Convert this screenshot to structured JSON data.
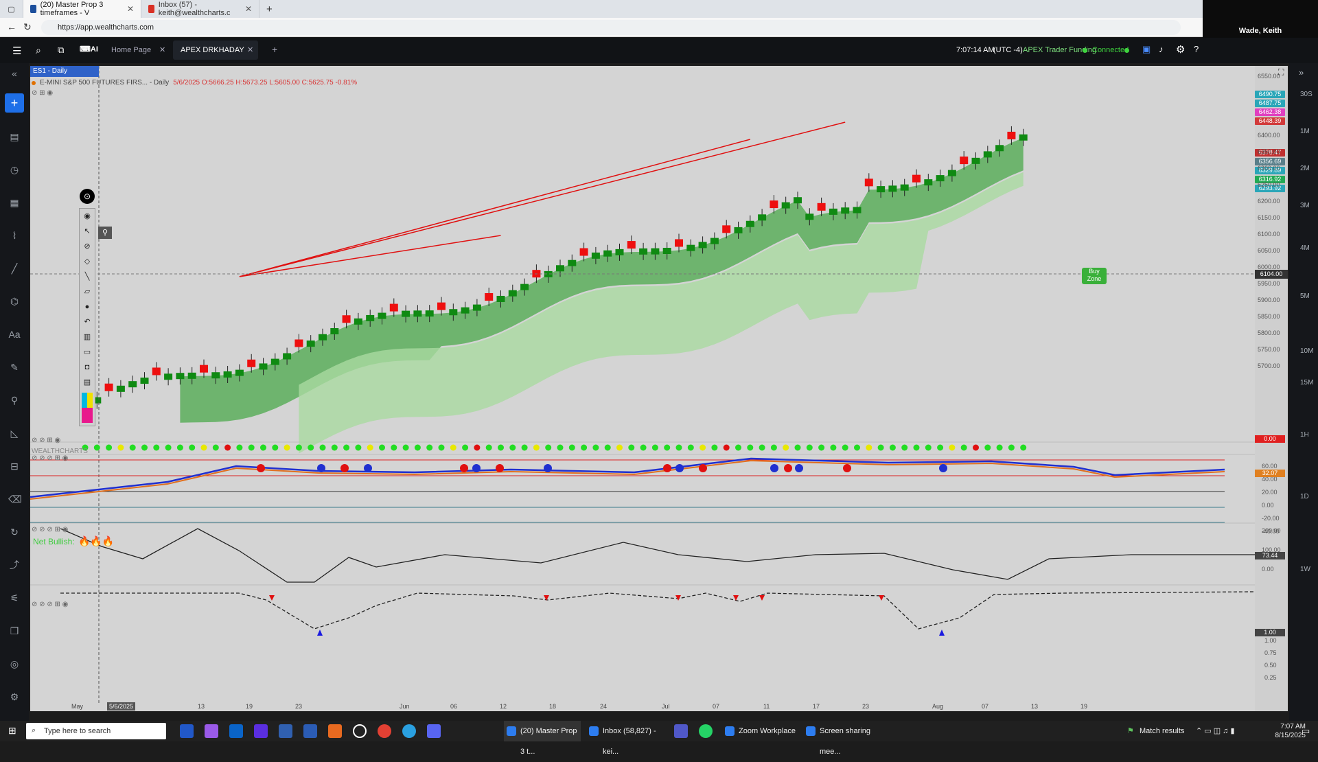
{
  "browser": {
    "tabs": [
      {
        "title": "(20) Master Prop 3 timeframes - V",
        "active": true
      },
      {
        "title": "Inbox (57) - keith@wealthcharts.c",
        "active": false
      }
    ],
    "new_tab": "+",
    "url": "https://app.wealthcharts.com",
    "user_name": "Wade, Keith"
  },
  "app": {
    "tabs": [
      "Home Page",
      "APEX DRKHADAY"
    ],
    "add_tab": "+",
    "time": "7:07:14 AM",
    "timezone": "(UTC -4)",
    "account": "APEX Trader Funding",
    "status": "Connected"
  },
  "chart": {
    "symbol_tab": "ES1 - Daily",
    "title": "E-MINI S&P 500 FUTURES FIRS... - Daily",
    "ohlc": "5/6/2025 O:5666.25 H:5673.25 L:5605.00 C:5625.75 -0.81%",
    "buy_zone": "Buy Zone",
    "net_bullish": "Net Bullish:",
    "crosshair_date": "5/6/2025",
    "crosshair_price": "6104.00",
    "watermark": "WEALTHCHARTS",
    "price_ticks": [
      "6550.00",
      "6400.00",
      "6350.00",
      "6300.00",
      "6250.00",
      "6200.00",
      "6150.00",
      "6100.00",
      "6050.00",
      "6000.00",
      "5950.00",
      "5900.00",
      "5850.00",
      "5800.00",
      "5750.00",
      "5700.00"
    ],
    "price_tags": [
      {
        "v": "6490.75",
        "c": "#2aa6b8"
      },
      {
        "v": "6487.75",
        "c": "#2aa6b8"
      },
      {
        "v": "6462.38",
        "c": "#e040c0"
      },
      {
        "v": "6448.39",
        "c": "#d23b3b"
      },
      {
        "v": "6378.47",
        "c": "#c03030"
      },
      {
        "v": "6356.69",
        "c": "#5a7f8a"
      },
      {
        "v": "6329.89",
        "c": "#2aa6b8"
      },
      {
        "v": "6316.92",
        "c": "#22aa55"
      },
      {
        "v": "6293.92",
        "c": "#2aa6b8"
      }
    ],
    "osc1_ticks": [
      "60.00",
      "40.00",
      "20.00",
      "0.00",
      "-20.00",
      "-40.00"
    ],
    "osc1_tag": "0.00",
    "osc1_tag2": "32.07",
    "osc2_ticks": [
      "200.00",
      "100.00",
      "0.00"
    ],
    "osc2_tag": "73.44",
    "osc3_ticks": [
      "1.00",
      "0.75",
      "0.50",
      "0.25"
    ],
    "osc3_tag": "1.00",
    "x_labels": [
      "May",
      "13",
      "19",
      "23",
      "Jun",
      "06",
      "12",
      "18",
      "24",
      "Jul",
      "07",
      "11",
      "17",
      "23",
      "Aug",
      "07",
      "13",
      "19"
    ],
    "vol_labels": [
      "30S",
      "1M",
      "2M",
      "3M",
      "4M",
      "5M",
      "10M",
      "15M",
      "1H",
      "1D",
      "1W"
    ]
  },
  "taskbar": {
    "search": "Type here to search",
    "apps": [
      "(20) Master Prop 3 t...",
      "Inbox (58,827) - kei...",
      "Zoom Workplace",
      "Screen sharing mee..."
    ],
    "match": "Match results",
    "clock_time": "7:07 AM",
    "clock_date": "8/15/2025"
  },
  "colors": {
    "bull": "#0f8a12",
    "bear": "#ee0f0f",
    "band": "#5cae5c",
    "cloud": "#a9d9a0"
  }
}
